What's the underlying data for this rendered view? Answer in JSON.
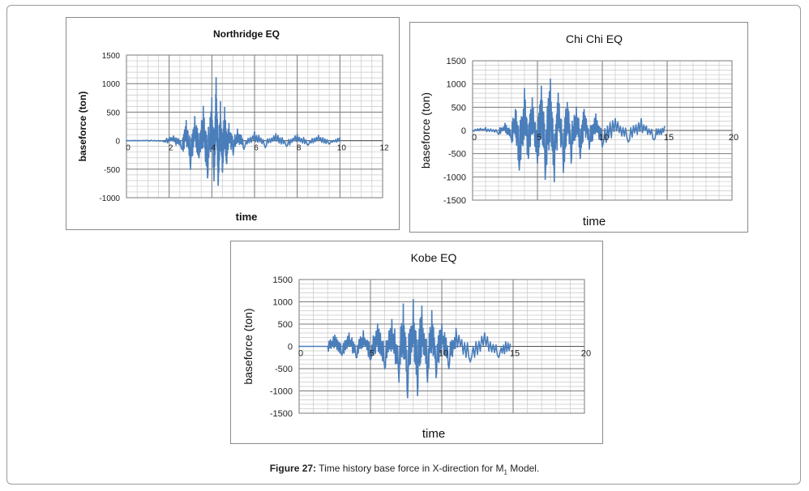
{
  "figure": {
    "caption_label": "Figure 27:",
    "caption_text_1": " Time history base force in X-direction for M",
    "caption_subscript": "1",
    "caption_text_2": " Model."
  },
  "chart_data": [
    {
      "type": "line",
      "title": "Northridge EQ",
      "xlabel": "time",
      "ylabel": "baseforce (ton)",
      "xlim": [
        0,
        12
      ],
      "ylim": [
        -1000,
        1500
      ],
      "xticks": [
        "0",
        "2",
        "4",
        "6",
        "8",
        "10",
        "12"
      ],
      "yticks": [
        "1500",
        "1000",
        "500",
        "0",
        "-500",
        "-1000"
      ],
      "series_color": "#4a7ebb",
      "grid": true,
      "x": [
        0,
        1,
        1.8,
        2.2,
        2.6,
        2.8,
        3.0,
        3.2,
        3.4,
        3.6,
        3.8,
        4.0,
        4.1,
        4.2,
        4.3,
        4.4,
        4.5,
        4.6,
        4.7,
        4.8,
        5.0,
        5.2,
        5.5,
        6.0,
        6.5,
        7.0,
        7.5,
        8.0,
        8.5,
        9.0,
        9.5,
        10.0
      ],
      "values": [
        0,
        5,
        -20,
        80,
        -150,
        350,
        -500,
        420,
        -300,
        600,
        -650,
        750,
        -700,
        1100,
        -780,
        680,
        -550,
        580,
        -400,
        300,
        -250,
        200,
        -150,
        150,
        -120,
        120,
        -100,
        110,
        -80,
        90,
        -60,
        50
      ]
    },
    {
      "type": "line",
      "title": "Chi Chi EQ",
      "xlabel": "time",
      "ylabel": "baseforce (ton)",
      "xlim": [
        0,
        20
      ],
      "ylim": [
        -1500,
        1500
      ],
      "xticks": [
        "0",
        "5",
        "10",
        "15",
        "20"
      ],
      "yticks": [
        "1500",
        "1000",
        "500",
        "0",
        "-500",
        "-1000",
        "-1500"
      ],
      "series_color": "#4a7ebb",
      "grid": true,
      "x": [
        0,
        1,
        2,
        2.5,
        3,
        3.3,
        3.6,
        4,
        4.3,
        4.6,
        5,
        5.3,
        5.6,
        6,
        6.3,
        6.6,
        7,
        7.3,
        7.6,
        8,
        8.3,
        8.6,
        9,
        9.5,
        10,
        11,
        12,
        13,
        14,
        14.8
      ],
      "values": [
        0,
        60,
        -80,
        150,
        -200,
        450,
        -850,
        900,
        -600,
        700,
        -700,
        950,
        -1050,
        1100,
        -1100,
        800,
        -900,
        600,
        -700,
        500,
        -600,
        450,
        -400,
        350,
        -350,
        250,
        -250,
        250,
        -200,
        80
      ]
    },
    {
      "type": "line",
      "title": "Kobe EQ",
      "xlabel": "time",
      "ylabel": "baseforce (ton)",
      "xlim": [
        0,
        20
      ],
      "ylim": [
        -1500,
        1500
      ],
      "xticks": [
        "0",
        "5",
        "10",
        "15",
        "20"
      ],
      "yticks": [
        "1500",
        "1000",
        "500",
        "0",
        "-500",
        "-1000",
        "-1500"
      ],
      "series_color": "#4a7ebb",
      "grid": true,
      "x": [
        0,
        1,
        2,
        2.5,
        3,
        3.5,
        4,
        4.5,
        5,
        5.5,
        6,
        6.5,
        7,
        7.3,
        7.6,
        8,
        8.3,
        8.6,
        9,
        9.3,
        9.6,
        10,
        10.5,
        11,
        12,
        13,
        14,
        14.8
      ],
      "values": [
        0,
        0,
        0,
        250,
        -200,
        300,
        -250,
        350,
        -300,
        500,
        -500,
        600,
        -800,
        950,
        -1150,
        1050,
        -1100,
        900,
        -800,
        800,
        -700,
        500,
        -500,
        400,
        -350,
        300,
        -250,
        50
      ]
    }
  ]
}
